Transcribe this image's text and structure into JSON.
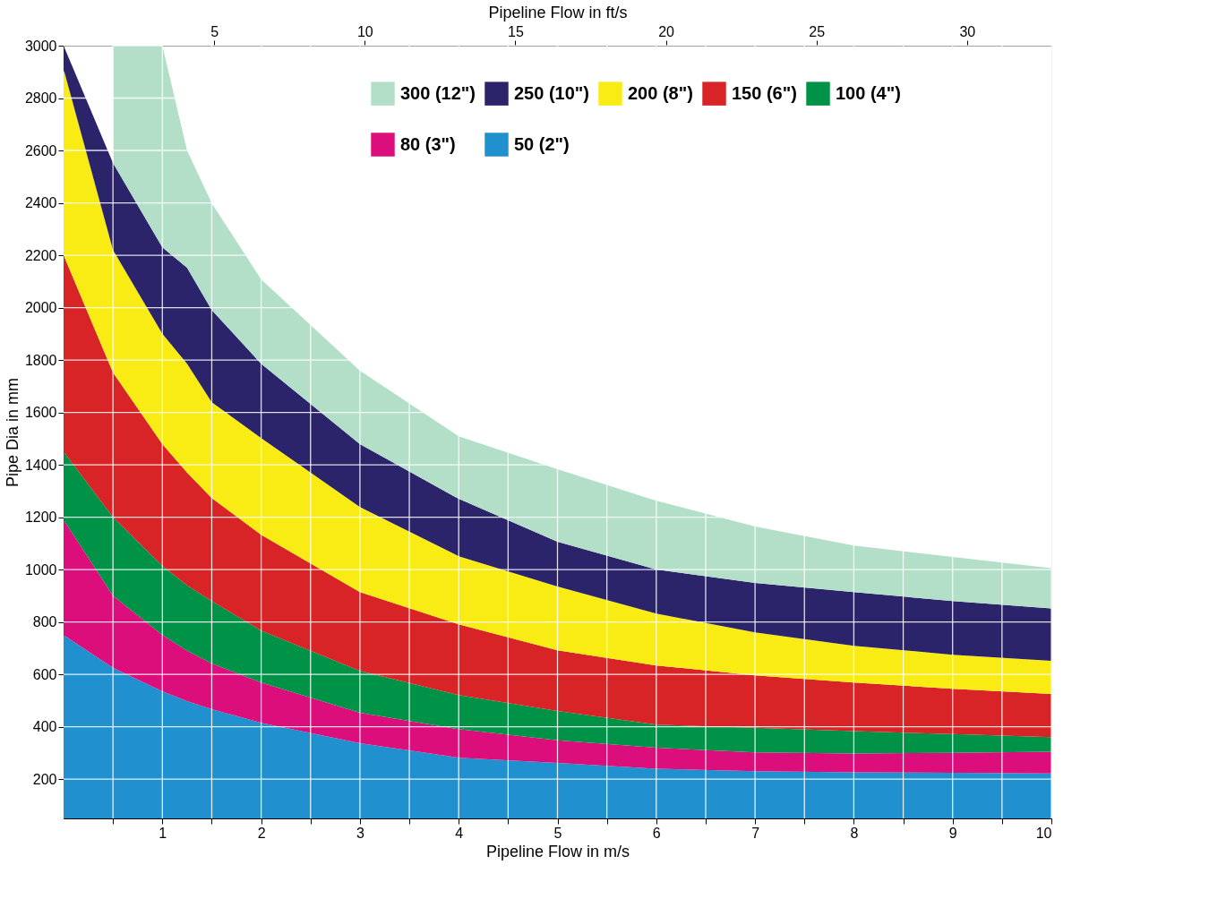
{
  "chart_data": {
    "type": "area",
    "stacked": true,
    "xlabel": "Pipeline Flow in m/s",
    "x2label": "Pipeline Flow in ft/s",
    "ylabel": "Pipe Dia in mm",
    "x": [
      0,
      0.5,
      1,
      1.25,
      1.5,
      2,
      3,
      4,
      5,
      6,
      7,
      8,
      9,
      10
    ],
    "xlim": [
      0,
      10
    ],
    "xticks": [
      {
        "value": 0.5,
        "label": null
      },
      1,
      {
        "value": 1.5,
        "label": null
      },
      2,
      {
        "value": 2.5,
        "label": null
      },
      3,
      {
        "value": 3.5,
        "label": null
      },
      4,
      {
        "value": 4.5,
        "label": null
      },
      5,
      {
        "value": 5.5,
        "label": null
      },
      6,
      {
        "value": 6.5,
        "label": null
      },
      7,
      {
        "value": 7.5,
        "label": null
      },
      8,
      {
        "value": 8.5,
        "label": null
      },
      9,
      {
        "value": 9.5,
        "label": null
      },
      10
    ],
    "x2lim": [
      0,
      32.8
    ],
    "x2ticks": [
      5,
      10,
      15,
      20,
      25,
      30
    ],
    "ylim": [
      50,
      3000
    ],
    "yticks": [
      200,
      400,
      600,
      800,
      1000,
      1200,
      1400,
      1600,
      1800,
      2000,
      2200,
      2400,
      2600,
      2800,
      3000
    ],
    "grid": true,
    "legend": "top right",
    "series": [
      {
        "name": "50 (2\")",
        "color": "#2190cf",
        "values": [
          750,
          625,
          535,
          498,
          467,
          415,
          337,
          282,
          262,
          240,
          230,
          226,
          224,
          222
        ]
      },
      {
        "name": "80 (3\")",
        "color": "#dc0e7b",
        "values": [
          440,
          275,
          215,
          192,
          174,
          154,
          116,
          109,
          86,
          80,
          72,
          72,
          76,
          83
        ]
      },
      {
        "name": "100 (4\")",
        "color": "#009246",
        "values": [
          260,
          300,
          264,
          250,
          239,
          198,
          160,
          130,
          112,
          88,
          94,
          85,
          72,
          55
        ]
      },
      {
        "name": "150 (6\")",
        "color": "#d82426",
        "values": [
          750,
          552,
          465,
          430,
          393,
          366,
          301,
          270,
          232,
          226,
          200,
          186,
          173,
          165
        ]
      },
      {
        "name": "200 (8\")",
        "color": "#f9ec14",
        "values": [
          710,
          468,
          421,
          416,
          366,
          369,
          325,
          260,
          243,
          198,
          164,
          140,
          130,
          127
        ]
      },
      {
        "name": "250 (10\")",
        "color": "#2b246b",
        "values": [
          90,
          332,
          330,
          366,
          352,
          284,
          240,
          219,
          171,
          168,
          189,
          205,
          205,
          200
        ]
      },
      {
        "name": "300 (12\")",
        "color": "#b3dfc8",
        "values": [
          null,
          448,
          770,
          448,
          407,
          322,
          280,
          239,
          277,
          263,
          215,
          178,
          168,
          153
        ]
      }
    ]
  }
}
